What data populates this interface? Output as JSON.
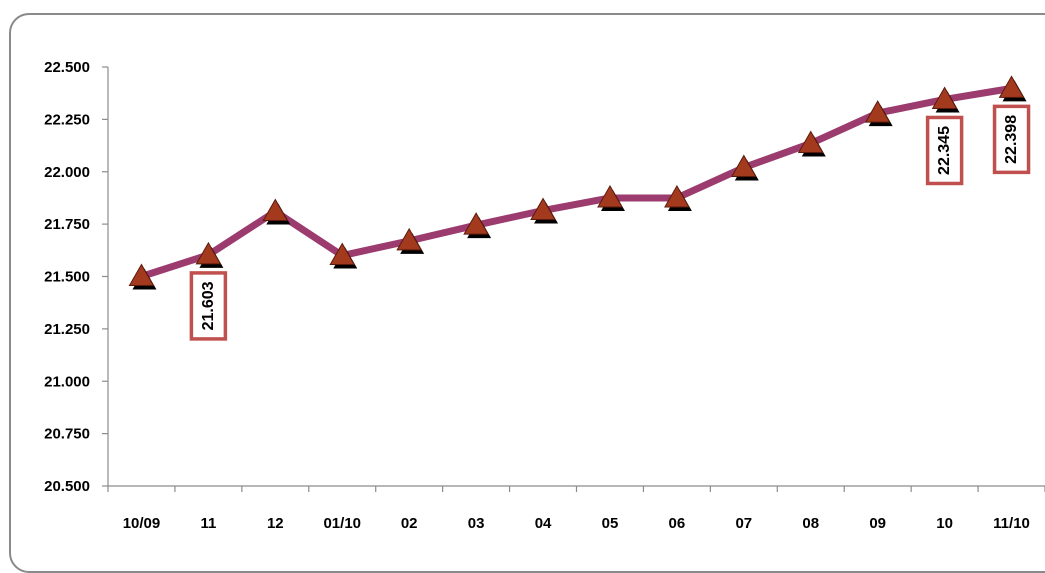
{
  "chart_data": {
    "type": "line",
    "title": "",
    "xlabel": "",
    "ylabel": "",
    "categories": [
      "10/09",
      "11",
      "12",
      "01/10",
      "02",
      "03",
      "04",
      "05",
      "06",
      "07",
      "08",
      "09",
      "10",
      "11/10"
    ],
    "series": [
      {
        "values": [
          21.5,
          21.603,
          21.81,
          21.6,
          21.67,
          21.745,
          21.815,
          21.875,
          21.875,
          22.02,
          22.135,
          22.28,
          22.345,
          22.398
        ],
        "line_color": "#9b3b6e",
        "marker": "triangle",
        "marker_color": "#a33a1e"
      }
    ],
    "y_ticks": [
      "20.500",
      "20.750",
      "21.000",
      "21.250",
      "21.500",
      "21.750",
      "22.000",
      "22.250",
      "22.500"
    ],
    "ylim": [
      20.5,
      22.5
    ],
    "y_step": 0.25,
    "grid": false,
    "legend": "none",
    "data_labels": [
      {
        "index": 1,
        "text": "21.603"
      },
      {
        "index": 12,
        "text": "22.345"
      },
      {
        "index": 13,
        "text": "22.398"
      }
    ],
    "data_label_border_color": "#c0504d"
  }
}
